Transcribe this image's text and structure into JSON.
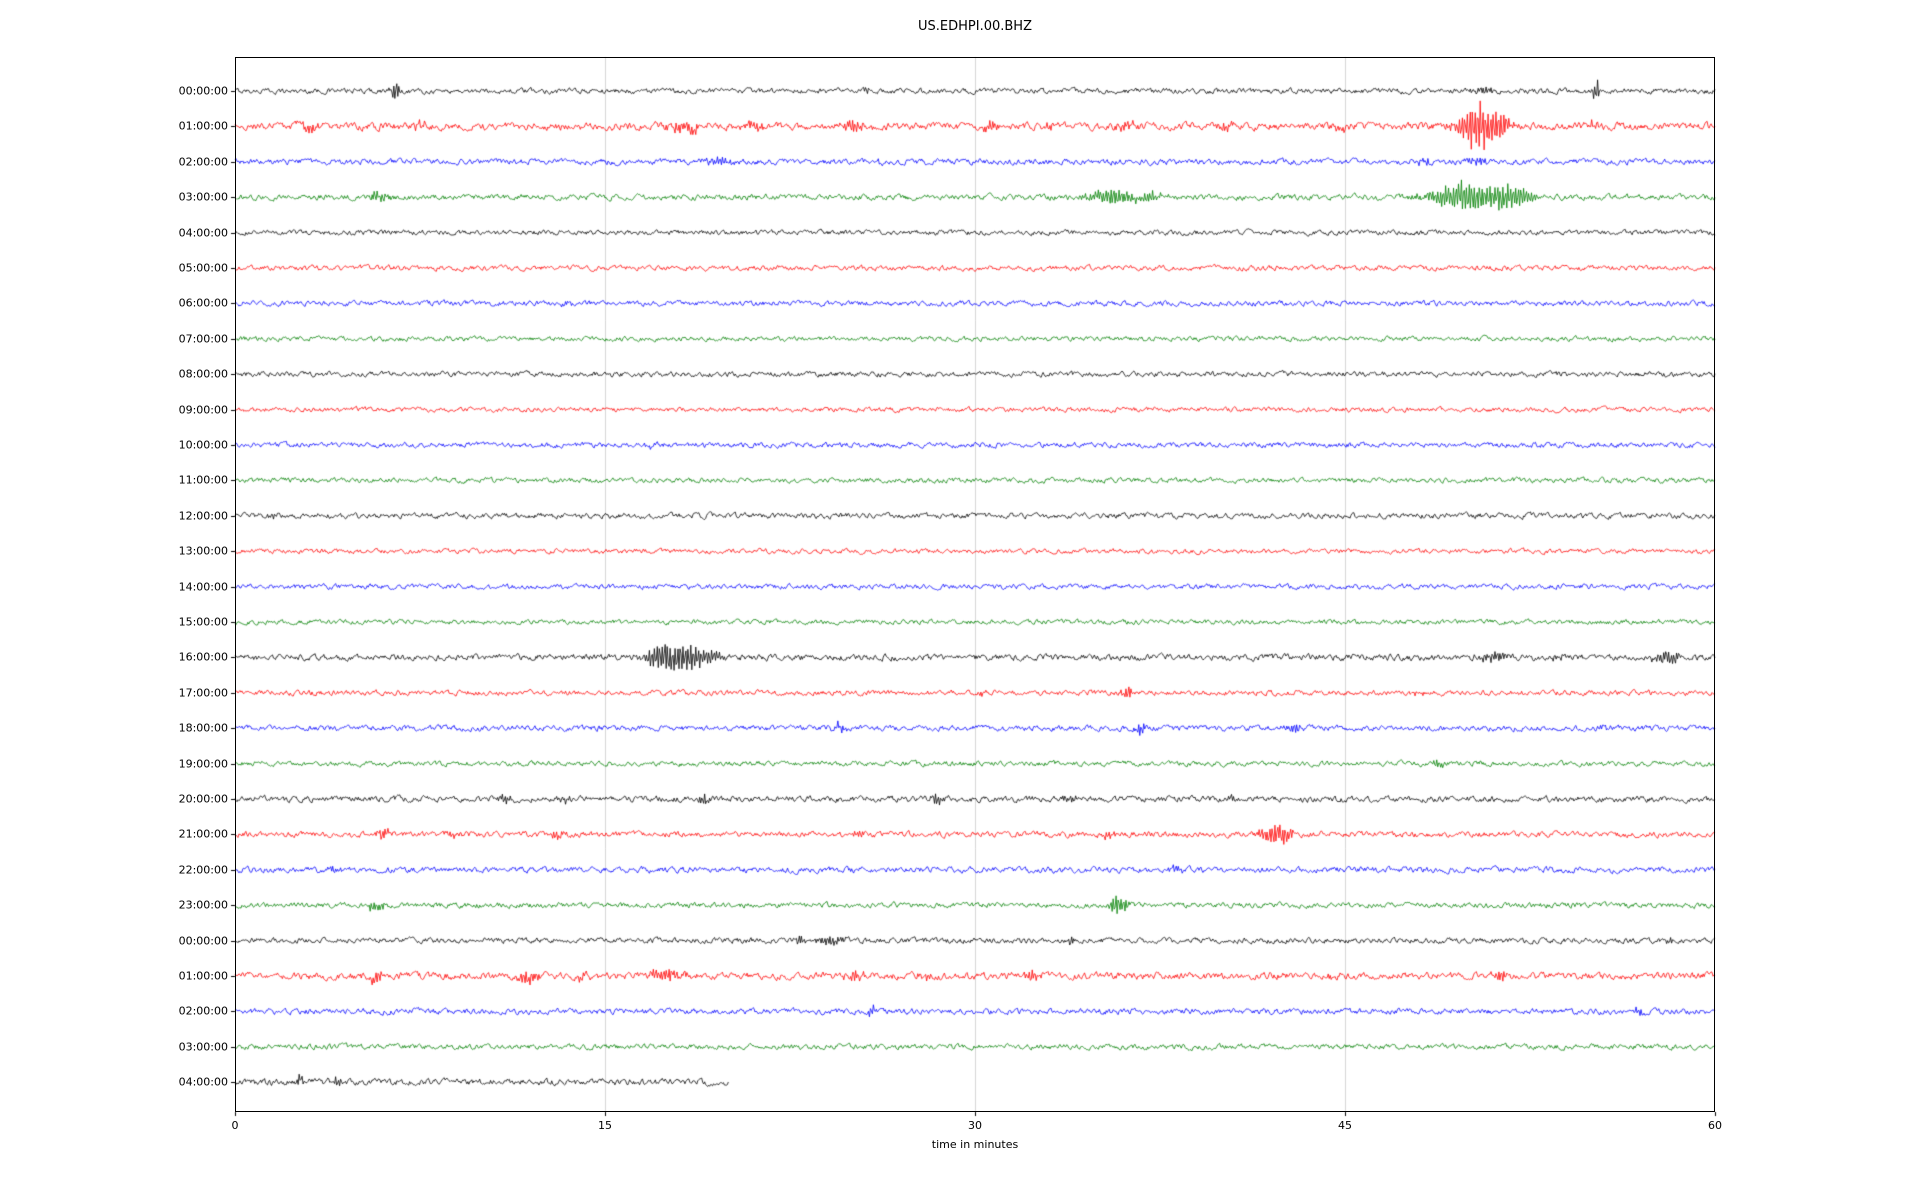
{
  "chart_data": {
    "type": "line",
    "subtype": "seismogram-helicorder",
    "title": "US.EDHPI.00.BHZ",
    "xlabel": "time in minutes",
    "xlim": [
      0,
      60
    ],
    "x_ticks": [
      0,
      15,
      30,
      45,
      60
    ],
    "x_tick_labels": [
      "0",
      "15",
      "30",
      "45",
      "60"
    ],
    "grid": true,
    "grid_color": "#cccccc",
    "legend": "none",
    "row_spacing_px": 35.4,
    "trace_color_cycle": [
      "#000000",
      "#ff0000",
      "#0000ff",
      "#008000"
    ],
    "event_format": [
      "start_minute",
      "amplitude_px",
      "width_minutes"
    ],
    "rows": [
      {
        "label": "00:00:00",
        "color": "#000000",
        "noise": 1.0,
        "duration": 60,
        "events": [
          [
            6.5,
            11,
            0.12
          ],
          [
            25.6,
            4,
            0.08
          ],
          [
            50.6,
            3,
            0.4
          ],
          [
            55.2,
            13,
            0.1
          ]
        ]
      },
      {
        "label": "01:00:00",
        "color": "#ff0000",
        "noise": 1.4,
        "duration": 60,
        "events": [
          [
            3.0,
            5,
            0.3
          ],
          [
            7.5,
            3,
            0.2
          ],
          [
            18.3,
            6,
            0.5
          ],
          [
            21.0,
            4,
            0.3
          ],
          [
            25.2,
            6,
            0.35
          ],
          [
            30.6,
            5,
            0.25
          ],
          [
            33.0,
            3,
            0.2
          ],
          [
            36.2,
            5,
            0.3
          ],
          [
            40.2,
            4,
            0.25
          ],
          [
            44.8,
            4,
            0.2
          ],
          [
            50.3,
            26,
            0.5
          ],
          [
            51.3,
            14,
            0.3
          ],
          [
            55.0,
            3,
            0.2
          ]
        ]
      },
      {
        "label": "02:00:00",
        "color": "#0000ff",
        "noise": 1.1,
        "duration": 60,
        "events": [
          [
            19.6,
            5,
            0.35
          ],
          [
            26.0,
            2,
            0.2
          ],
          [
            48.2,
            3,
            0.2
          ],
          [
            50.4,
            4,
            0.3
          ]
        ]
      },
      {
        "label": "03:00:00",
        "color": "#008000",
        "noise": 1.1,
        "duration": 60,
        "events": [
          [
            5.8,
            6,
            0.3
          ],
          [
            35.6,
            9,
            0.7
          ],
          [
            37.2,
            5,
            0.3
          ],
          [
            49.9,
            18,
            0.9
          ],
          [
            51.6,
            11,
            0.4
          ],
          [
            52.3,
            6,
            0.3
          ]
        ]
      },
      {
        "label": "04:00:00",
        "color": "#000000",
        "noise": 0.95,
        "duration": 60,
        "events": []
      },
      {
        "label": "05:00:00",
        "color": "#ff0000",
        "noise": 0.95,
        "duration": 60,
        "events": []
      },
      {
        "label": "06:00:00",
        "color": "#0000ff",
        "noise": 1.0,
        "duration": 60,
        "events": [
          [
            13.4,
            2,
            0.2
          ]
        ]
      },
      {
        "label": "07:00:00",
        "color": "#008000",
        "noise": 0.9,
        "duration": 60,
        "events": []
      },
      {
        "label": "08:00:00",
        "color": "#000000",
        "noise": 1.0,
        "duration": 60,
        "events": []
      },
      {
        "label": "09:00:00",
        "color": "#ff0000",
        "noise": 0.9,
        "duration": 60,
        "events": []
      },
      {
        "label": "10:00:00",
        "color": "#0000ff",
        "noise": 1.0,
        "duration": 60,
        "events": [
          [
            17.0,
            2,
            0.3
          ]
        ]
      },
      {
        "label": "11:00:00",
        "color": "#008000",
        "noise": 0.95,
        "duration": 60,
        "events": []
      },
      {
        "label": "12:00:00",
        "color": "#000000",
        "noise": 1.05,
        "duration": 60,
        "events": [
          [
            1.5,
            3,
            0.15
          ]
        ]
      },
      {
        "label": "13:00:00",
        "color": "#ff0000",
        "noise": 0.9,
        "duration": 60,
        "events": []
      },
      {
        "label": "14:00:00",
        "color": "#0000ff",
        "noise": 0.95,
        "duration": 60,
        "events": []
      },
      {
        "label": "15:00:00",
        "color": "#008000",
        "noise": 0.9,
        "duration": 60,
        "events": []
      },
      {
        "label": "16:00:00",
        "color": "#000000",
        "noise": 1.2,
        "duration": 60,
        "events": [
          [
            16.9,
            6,
            0.2
          ],
          [
            17.6,
            17,
            0.5
          ],
          [
            18.6,
            11,
            0.35
          ],
          [
            19.4,
            7,
            0.25
          ],
          [
            50.9,
            5,
            0.4
          ],
          [
            53.6,
            3,
            0.2
          ],
          [
            57.9,
            6,
            0.3
          ],
          [
            58.4,
            4,
            0.2
          ]
        ]
      },
      {
        "label": "17:00:00",
        "color": "#ff0000",
        "noise": 1.0,
        "duration": 60,
        "events": [
          [
            30.2,
            3,
            0.15
          ],
          [
            36.2,
            6,
            0.18
          ],
          [
            47.9,
            3,
            0.15
          ]
        ]
      },
      {
        "label": "18:00:00",
        "color": "#0000ff",
        "noise": 1.05,
        "duration": 60,
        "events": [
          [
            24.5,
            5,
            0.2
          ],
          [
            36.7,
            8,
            0.12
          ],
          [
            42.9,
            5,
            0.25
          ],
          [
            55.5,
            3,
            0.15
          ]
        ]
      },
      {
        "label": "19:00:00",
        "color": "#008000",
        "noise": 0.95,
        "duration": 60,
        "events": [
          [
            48.8,
            5,
            0.12
          ],
          [
            50.5,
            3,
            0.1
          ]
        ]
      },
      {
        "label": "20:00:00",
        "color": "#000000",
        "noise": 1.15,
        "duration": 60,
        "events": [
          [
            11.0,
            5,
            0.2
          ],
          [
            13.4,
            4,
            0.15
          ],
          [
            19.0,
            6,
            0.15
          ],
          [
            28.5,
            7,
            0.2
          ],
          [
            33.9,
            5,
            0.2
          ],
          [
            40.4,
            3,
            0.15
          ]
        ]
      },
      {
        "label": "21:00:00",
        "color": "#ff0000",
        "noise": 1.1,
        "duration": 60,
        "events": [
          [
            6.0,
            5,
            0.25
          ],
          [
            8.8,
            4,
            0.2
          ],
          [
            13.1,
            5,
            0.25
          ],
          [
            25.2,
            5,
            0.2
          ],
          [
            35.4,
            4,
            0.2
          ],
          [
            42.0,
            9,
            0.4
          ],
          [
            42.6,
            6,
            0.25
          ]
        ]
      },
      {
        "label": "22:00:00",
        "color": "#0000ff",
        "noise": 1.15,
        "duration": 60,
        "events": [
          [
            4.0,
            3,
            0.2
          ],
          [
            38.2,
            3,
            0.2
          ]
        ]
      },
      {
        "label": "23:00:00",
        "color": "#008000",
        "noise": 1.0,
        "duration": 60,
        "events": [
          [
            5.7,
            6,
            0.25
          ],
          [
            35.7,
            10,
            0.15
          ],
          [
            36.1,
            7,
            0.12
          ]
        ]
      },
      {
        "label": "00:00:00",
        "color": "#000000",
        "noise": 1.05,
        "duration": 60,
        "events": [
          [
            22.9,
            7,
            0.12
          ],
          [
            24.1,
            5,
            0.4
          ],
          [
            33.9,
            6,
            0.1
          ],
          [
            58.1,
            4,
            0.15
          ]
        ]
      },
      {
        "label": "01:00:00",
        "color": "#ff0000",
        "noise": 1.35,
        "duration": 60,
        "events": [
          [
            5.7,
            6,
            0.25
          ],
          [
            11.9,
            7,
            0.3
          ],
          [
            14.1,
            4,
            0.2
          ],
          [
            17.4,
            7,
            0.45
          ],
          [
            25.1,
            5,
            0.25
          ],
          [
            28.0,
            3,
            0.2
          ],
          [
            32.3,
            6,
            0.25
          ],
          [
            44.6,
            3,
            0.2
          ],
          [
            51.3,
            6,
            0.2
          ]
        ]
      },
      {
        "label": "02:00:00",
        "color": "#0000ff",
        "noise": 1.1,
        "duration": 60,
        "events": [
          [
            25.8,
            8,
            0.1
          ],
          [
            56.9,
            4,
            0.15
          ]
        ]
      },
      {
        "label": "03:00:00",
        "color": "#008000",
        "noise": 1.0,
        "duration": 60,
        "events": []
      },
      {
        "label": "04:00:00",
        "color": "#000000",
        "noise": 1.25,
        "duration": 20,
        "events": [
          [
            2.6,
            7,
            0.15
          ],
          [
            4.1,
            4,
            0.2
          ]
        ]
      }
    ]
  }
}
